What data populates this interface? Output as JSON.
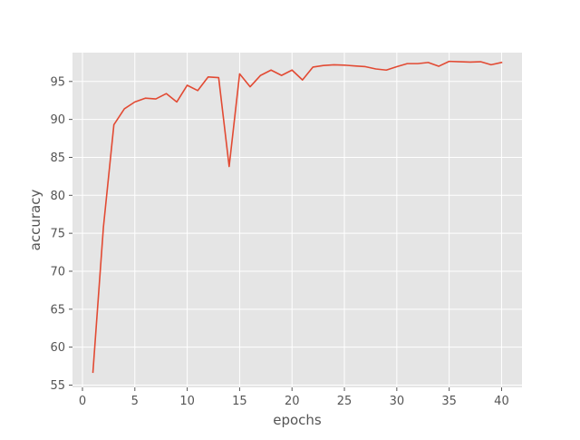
{
  "chart_data": {
    "type": "line",
    "title": "",
    "xlabel": "epochs",
    "ylabel": "accuracy",
    "xlim": [
      -0.95,
      41.95
    ],
    "ylim": [
      54.7,
      98.8
    ],
    "xticks": [
      0,
      5,
      10,
      15,
      20,
      25,
      30,
      35,
      40
    ],
    "yticks": [
      55,
      60,
      65,
      70,
      75,
      80,
      85,
      90,
      95
    ],
    "grid": true,
    "legend": "none",
    "style": {
      "background": "#e5e5e5",
      "grid_color": "#ffffff",
      "line_color": "#e24a33",
      "text_color": "#555555"
    },
    "series": [
      {
        "x": [
          1,
          2,
          3,
          4,
          5,
          6,
          7,
          8,
          9,
          10,
          11,
          12,
          13,
          14,
          15,
          16,
          17,
          18,
          19,
          20,
          21,
          22,
          23,
          24,
          25,
          26,
          27,
          28,
          29,
          30,
          31,
          32,
          33,
          34,
          35,
          36,
          37,
          38,
          39,
          40
        ],
        "y": [
          56.7,
          75.8,
          89.3,
          91.4,
          92.3,
          92.8,
          92.7,
          93.4,
          92.3,
          94.5,
          93.8,
          95.6,
          95.5,
          83.8,
          96.0,
          94.3,
          95.8,
          96.5,
          95.8,
          96.5,
          95.2,
          96.9,
          97.1,
          97.2,
          97.15,
          97.05,
          96.95,
          96.65,
          96.5,
          96.95,
          97.35,
          97.35,
          97.5,
          97.0,
          97.65,
          97.6,
          97.55,
          97.6,
          97.2,
          97.5
        ]
      }
    ]
  }
}
